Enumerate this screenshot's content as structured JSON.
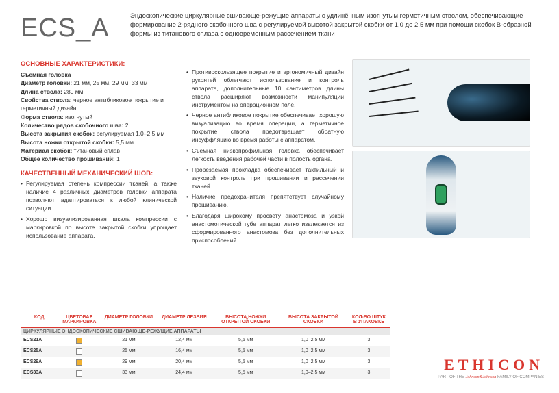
{
  "logo": "ECS_A",
  "description": "Эндоскопические циркулярные сшивающе-режущие аппараты с удлинённым изогнутым герметичным стволом, обеспечивающие формирование 2-рядного скобочного шва с регулируемой высотой закрытой скобки от 1,0 до 2,5 мм при помощи скобок B-образной формы из титанового сплава с одновременным рассечением ткани",
  "section1_title": "ОСНОВНЫЕ ХАРАКТЕРИСТИКИ:",
  "specs": [
    {
      "k": "Съемная головка",
      "v": ""
    },
    {
      "k": "Диаметр головки:",
      "v": " 21 мм, 25 мм, 29 мм, 33 мм"
    },
    {
      "k": "Длина ствола:",
      "v": " 280 мм"
    },
    {
      "k": "Свойства ствола:",
      "v": " черное антибликовое покрытие и герметичный дизайн"
    },
    {
      "k": "Форма ствола:",
      "v": " изогнутый"
    },
    {
      "k": "Количество рядов скобочного шва:",
      "v": " 2"
    },
    {
      "k": "Высота закрытия скобок:",
      "v": " регулируемая 1,0–2,5 мм"
    },
    {
      "k": "Высота ножки открытой скобки:",
      "v": " 5,5 мм"
    },
    {
      "k": "Материал скобок:",
      "v": " титановый сплав"
    },
    {
      "k": "Общее количество прошиваний:",
      "v": "  1"
    }
  ],
  "section2_title": "КАЧЕСТВЕННЫЙ МЕХАНИЧЕСКИЙ ШОВ:",
  "bullets1": [
    "Регулируемая степень компрессии тканей, а также наличие 4 различных диаметров головки аппарата позволяют адаптироваться к любой клинической ситуации.",
    "Хорошо визуализированная шкала компрессии с маркировкой по высоте закрытой скобки упрощает использование аппарата."
  ],
  "bullets2": [
    "Противоскользящее покрытие и эргономичный дизайн рукоятей облегчают использование и контроль аппарата, дополнительные 10 сантиметров длины ствола расширяют возможности манипуляции инструментом на операционном поле.",
    "Черное антибликовое покрытие обеспечивает хорошую визуализацию во время операции, а герметичное покрытие ствола предотвращает обратную инсуффляцию во время работы с аппаратом.",
    "Съемная низкопрофильная головка обеспечивает легкость введения рабочей части в полость органа.",
    "Прорезаемая прокладка обеспечивает тактильный и звуковой контроль при прошивании и рассечении тканей.",
    "Наличие предохранителя препятствует случайному прошиванию.",
    "Благодаря широкому просвету анастомоза и узкой анастомотической губе аппарат легко извлекается из сформированного анастомоза без дополнительных приспособлений."
  ],
  "table": {
    "headers": {
      "code": "КОД",
      "mark": "ЦВЕТОВАЯ МАРКИРОВКА",
      "diam": "ДИАМЕТР ГОЛОВКИ",
      "blade": "ДИАМЕТР ЛЕЗВИЯ",
      "leg": "ВЫСОТА НОЖКИ ОТКРЫТОЙ СКОБКИ",
      "closed": "ВЫСОТА ЗАКРЫТОЙ СКОБКИ",
      "pack": "КОЛ-ВО ШТУК В УПАКОВКЕ"
    },
    "subheader": "ЦИРКУЛЯРНЫЕ ЭНДОСКОПИЧЕСКИЕ СШИВАЮЩЕ-РЕЖУЩИЕ АППАРАТЫ",
    "rows": [
      {
        "code": "ECS21A",
        "color": "#f0b030",
        "diam": "21 мм",
        "blade": "12,4 мм",
        "leg": "5,5 мм",
        "closed": "1,0–2,5 мм",
        "pack": "3"
      },
      {
        "code": "ECS25A",
        "color": "#ffffff",
        "diam": "25 мм",
        "blade": "16,4 мм",
        "leg": "5,5 мм",
        "closed": "1,0–2,5 мм",
        "pack": "3"
      },
      {
        "code": "ECS29A",
        "color": "#f0b030",
        "diam": "29 мм",
        "blade": "20,4 мм",
        "leg": "5,5 мм",
        "closed": "1,0–2,5 мм",
        "pack": "3"
      },
      {
        "code": "ECS33A",
        "color": "#ffffff",
        "diam": "33 мм",
        "blade": "24,4 мм",
        "leg": "5,5 мм",
        "closed": "1,0–2,5 мм",
        "pack": "3"
      }
    ]
  },
  "brand": {
    "name": "ETHICON",
    "sub_pre": "PART OF THE ",
    "sub_jnj": "Johnson&Johnson",
    "sub_post": " FAMILY OF COMPANIES"
  },
  "colors": {
    "accent": "#d9362e"
  }
}
